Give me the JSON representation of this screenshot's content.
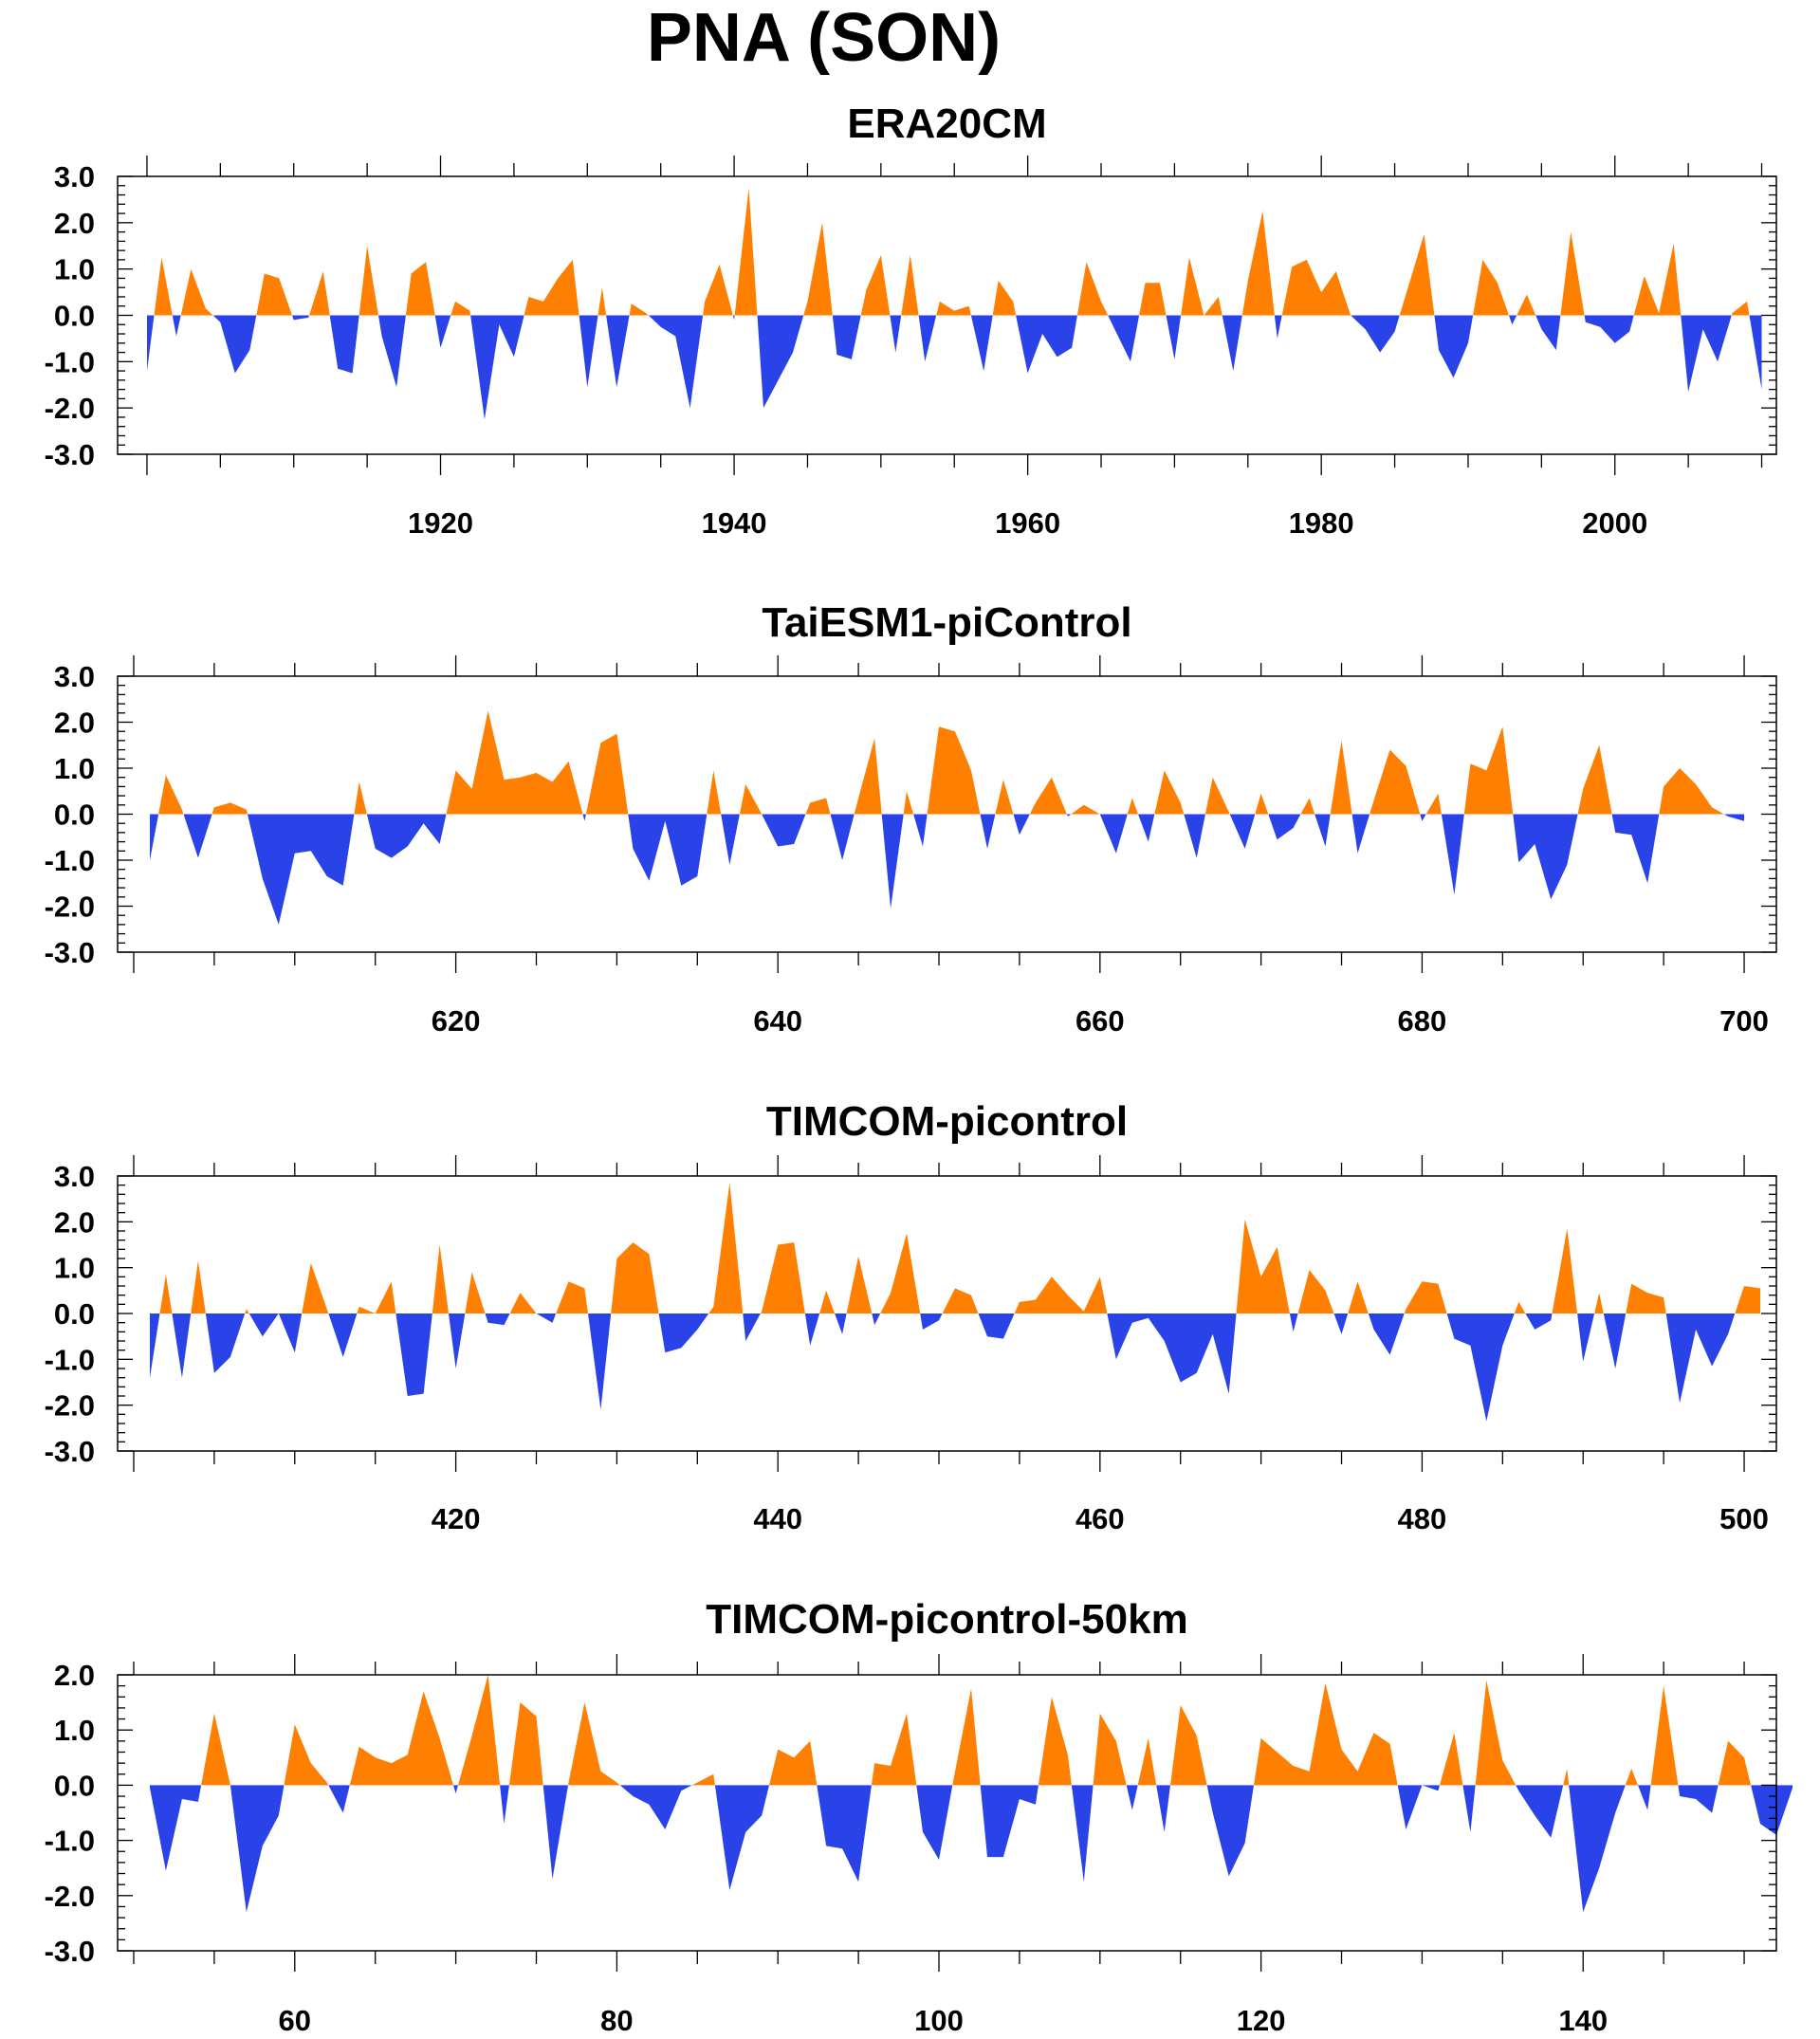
{
  "title": "PNA (SON)",
  "colors": {
    "positive": "#ff8000",
    "negative": "#2a43e8",
    "frame": "#000000"
  },
  "chart_data": [
    {
      "type": "area",
      "title": "ERA20CM",
      "xlim": [
        1898,
        2011
      ],
      "ylim": [
        -3,
        3
      ],
      "yticks": [
        3,
        2,
        1,
        0,
        -1,
        -2,
        -3
      ],
      "ytick_labels": [
        "3.0",
        "2.0",
        "1.0",
        "0.0",
        "-1.0",
        "-2.0",
        "-3.0"
      ],
      "xtick_labels": [
        "1920",
        "1940",
        "1960",
        "1980",
        "2000"
      ],
      "xticks": [
        1920,
        1940,
        1960,
        1980,
        2000
      ],
      "x_start": 1900,
      "values": [
        -1.2,
        1.25,
        -0.45,
        1.0,
        0.15,
        -0.15,
        -1.25,
        -0.75,
        0.9,
        0.8,
        -0.1,
        -0.05,
        0.95,
        -1.15,
        -1.25,
        1.5,
        -0.45,
        -1.55,
        0.9,
        1.15,
        -0.7,
        0.3,
        0.1,
        -2.25,
        -0.2,
        -0.9,
        0.4,
        0.3,
        0.8,
        1.2,
        -1.55,
        0.6,
        -1.55,
        0.25,
        0.05,
        -0.25,
        -0.45,
        -2.0,
        0.3,
        1.1,
        -0.1,
        2.75,
        -2.0,
        -1.4,
        -0.8,
        0.3,
        2.0,
        -0.85,
        -0.95,
        0.55,
        1.3,
        -0.8,
        1.3,
        -1.0,
        0.3,
        0.1,
        0.2,
        -1.2,
        0.75,
        0.3,
        -1.25,
        -0.4,
        -0.9,
        -0.7,
        1.15,
        0.3,
        -0.35,
        -1.0,
        0.7,
        0.7,
        -0.95,
        1.25,
        0.0,
        0.4,
        -1.2,
        0.75,
        2.25,
        -0.5,
        1.05,
        1.2,
        0.5,
        0.95,
        0.0,
        -0.3,
        -0.8,
        -0.35,
        0.7,
        1.75,
        -0.75,
        -1.35,
        -0.6,
        1.2,
        0.7,
        -0.2,
        0.45,
        -0.3,
        -0.75,
        1.8,
        -0.15,
        -0.25,
        -0.6,
        -0.35,
        0.85,
        0.05,
        1.55,
        -1.65,
        -0.3,
        -1.0,
        0.05,
        0.3,
        -1.6
      ]
    },
    {
      "type": "area",
      "title": "TaiESM1-piControl",
      "xlim": [
        599,
        702
      ],
      "ylim": [
        -3,
        3
      ],
      "yticks": [
        3,
        2,
        1,
        0,
        -1,
        -2,
        -3
      ],
      "ytick_labels": [
        "3.0",
        "2.0",
        "1.0",
        "0.0",
        "-1.0",
        "-2.0",
        "-3.0"
      ],
      "xtick_labels": [
        "620",
        "640",
        "660",
        "680",
        "700"
      ],
      "xticks": [
        620,
        640,
        660,
        680,
        700
      ],
      "x_start": 601,
      "values": [
        -1.0,
        0.85,
        0.1,
        -0.95,
        0.15,
        0.25,
        0.1,
        -1.4,
        -2.4,
        -0.85,
        -0.8,
        -1.35,
        -1.55,
        0.7,
        -0.75,
        -0.95,
        -0.7,
        -0.2,
        -0.65,
        0.95,
        0.55,
        2.25,
        0.75,
        0.8,
        0.9,
        0.7,
        1.15,
        -0.15,
        1.55,
        1.75,
        -0.75,
        -1.45,
        -0.15,
        -1.55,
        -1.35,
        0.95,
        -1.1,
        0.65,
        0.0,
        -0.7,
        -0.65,
        0.25,
        0.35,
        -1.0,
        0.35,
        1.65,
        -2.05,
        0.5,
        -0.7,
        1.9,
        1.8,
        0.95,
        -0.75,
        0.75,
        -0.45,
        0.25,
        0.8,
        -0.05,
        0.2,
        0.0,
        -0.85,
        0.35,
        -0.6,
        0.95,
        0.25,
        -0.95,
        0.8,
        0.05,
        -0.75,
        0.45,
        -0.55,
        -0.3,
        0.35,
        -0.7,
        1.6,
        -0.85,
        0.3,
        1.4,
        1.05,
        -0.15,
        0.45,
        -1.75,
        1.1,
        0.95,
        1.9,
        -1.05,
        -0.65,
        -1.85,
        -1.1,
        0.55,
        1.5,
        -0.4,
        -0.45,
        -1.5,
        0.6,
        1.0,
        0.65,
        0.15,
        -0.05,
        -0.15
      ]
    },
    {
      "type": "area",
      "title": "TIMCOM-picontrol",
      "xlim": [
        399,
        502
      ],
      "ylim": [
        -3,
        3
      ],
      "yticks": [
        3,
        2,
        1,
        0,
        -1,
        -2,
        -3
      ],
      "ytick_labels": [
        "3.0",
        "2.0",
        "1.0",
        "0.0",
        "-1.0",
        "-2.0",
        "-3.0"
      ],
      "xtick_labels": [
        "420",
        "440",
        "460",
        "480",
        "500"
      ],
      "xticks": [
        420,
        440,
        460,
        480,
        500
      ],
      "x_start": 401,
      "values": [
        -1.4,
        0.85,
        -1.4,
        1.15,
        -1.3,
        -0.95,
        0.1,
        -0.5,
        0.0,
        -0.85,
        1.1,
        0.1,
        -0.95,
        0.15,
        0.0,
        0.7,
        -1.8,
        -1.75,
        1.5,
        -1.2,
        0.9,
        -0.2,
        -0.25,
        0.45,
        0.0,
        -0.2,
        0.7,
        0.55,
        -2.1,
        1.2,
        1.55,
        1.3,
        -0.85,
        -0.75,
        -0.35,
        0.15,
        2.85,
        -0.6,
        0.05,
        1.5,
        1.55,
        -0.7,
        0.5,
        -0.45,
        1.25,
        -0.25,
        0.45,
        1.75,
        -0.35,
        -0.15,
        0.55,
        0.4,
        -0.5,
        -0.55,
        0.25,
        0.3,
        0.8,
        0.4,
        0.05,
        0.8,
        -1.0,
        -0.2,
        -0.1,
        -0.6,
        -1.5,
        -1.3,
        -0.45,
        -1.75,
        2.05,
        0.8,
        1.45,
        -0.4,
        0.95,
        0.5,
        -0.45,
        0.7,
        -0.35,
        -0.9,
        0.1,
        0.7,
        0.65,
        -0.55,
        -0.7,
        -2.35,
        -0.7,
        0.25,
        -0.35,
        -0.15,
        1.85,
        -1.05,
        0.45,
        -1.2,
        0.65,
        0.45,
        0.35,
        -1.95,
        -0.35,
        -1.15,
        -0.45,
        0.6,
        0.55
      ]
    },
    {
      "type": "area",
      "title": "TIMCOM-picontrol-50km",
      "xlim": [
        49,
        152
      ],
      "ylim": [
        -3,
        2
      ],
      "yticks": [
        2,
        1,
        0,
        -1,
        -2,
        -3
      ],
      "ytick_labels": [
        "2.0",
        "1.0",
        "0.0",
        "-1.0",
        "-2.0",
        "-3.0"
      ],
      "xtick_labels": [
        "60",
        "80",
        "100",
        "120",
        "140"
      ],
      "xticks": [
        60,
        80,
        100,
        120,
        140
      ],
      "x_start": 51,
      "values": [
        -0.05,
        -1.55,
        -0.25,
        -0.3,
        1.3,
        0.0,
        -2.3,
        -1.1,
        -0.55,
        1.1,
        0.4,
        0.05,
        -0.5,
        0.7,
        0.5,
        0.4,
        0.55,
        1.7,
        0.85,
        -0.15,
        0.9,
        2.0,
        -0.7,
        1.5,
        1.25,
        -1.7,
        0.05,
        1.5,
        0.25,
        0.05,
        -0.2,
        -0.35,
        -0.8,
        -0.1,
        0.05,
        0.2,
        -1.9,
        -0.85,
        -0.55,
        0.65,
        0.5,
        0.8,
        -1.1,
        -1.15,
        -1.75,
        0.4,
        0.35,
        1.3,
        -0.85,
        -1.35,
        0.25,
        1.75,
        -1.3,
        -1.3,
        -0.25,
        -0.35,
        1.6,
        0.55,
        -1.75,
        1.3,
        0.8,
        -0.45,
        0.85,
        -0.85,
        1.45,
        0.9,
        -0.5,
        -1.65,
        -1.05,
        0.85,
        0.6,
        0.35,
        0.25,
        1.85,
        0.65,
        0.25,
        0.95,
        0.75,
        -0.8,
        0.0,
        -0.1,
        0.95,
        -0.85,
        1.9,
        0.45,
        -0.1,
        -0.55,
        -0.95,
        0.3,
        -2.3,
        -1.5,
        -0.5,
        0.3,
        -0.45,
        1.8,
        -0.2,
        -0.25,
        -0.5,
        0.8,
        0.5,
        -0.7,
        -0.9,
        -0.05
      ]
    }
  ]
}
